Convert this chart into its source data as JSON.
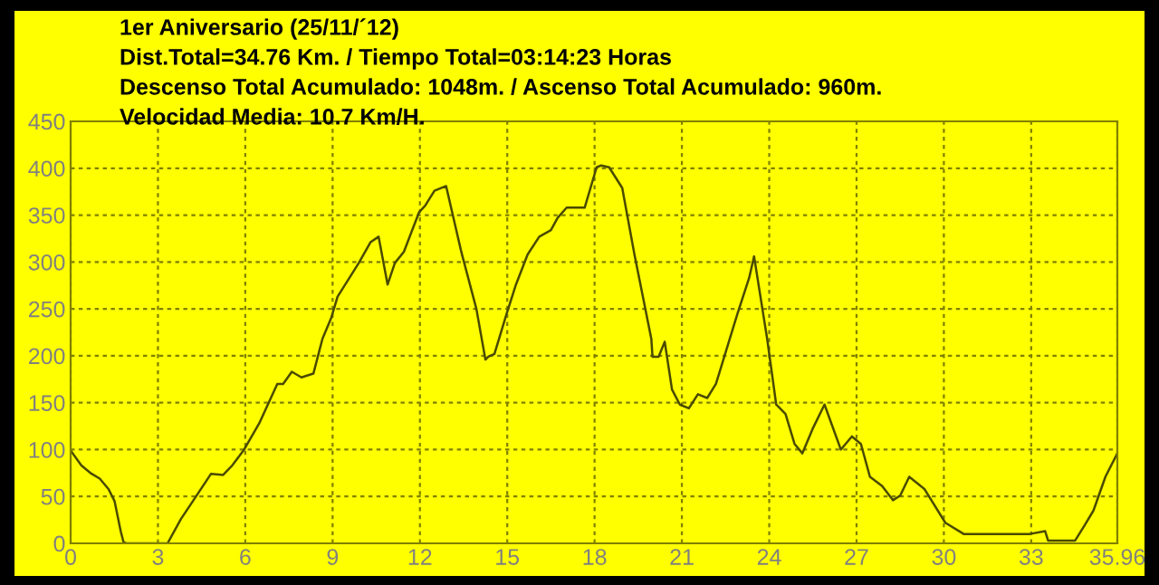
{
  "chart_data": {
    "type": "line",
    "title": "1er Aniversario (25/11/´12)",
    "annotations": [
      "Dist.Total=34.76 Km. / Tiempo Total=03:14:23 Horas",
      "Descenso Total Acumulado: 1048m. / Ascenso Total Acumulado: 960m.",
      "Velocidad Media: 10.7 Km/H."
    ],
    "series": [
      {
        "color": "#4a4a00",
        "x": [
          0,
          0.37,
          0.68,
          1.0,
          1.3,
          1.51,
          1.72,
          1.82,
          1.92,
          3.33,
          3.79,
          4.2,
          4.82,
          5.24,
          5.55,
          5.96,
          6.48,
          7.1,
          7.3,
          7.6,
          7.93,
          8.34,
          8.65,
          8.96,
          9.17,
          9.9,
          10.3,
          10.58,
          10.89,
          11.14,
          11.45,
          11.97,
          12.18,
          12.5,
          12.9,
          13.42,
          13.94,
          14.25,
          14.35,
          14.56,
          14.97,
          15.3,
          15.7,
          16.1,
          16.5,
          16.73,
          17.04,
          17.66,
          18.07,
          18.23,
          18.5,
          18.95,
          19.37,
          19.95,
          19.99,
          20.2,
          20.41,
          20.66,
          20.93,
          21.24,
          21.55,
          21.87,
          22.17,
          22.9,
          23.31,
          23.48,
          23.73,
          23.93,
          24.24,
          24.56,
          24.87,
          25.14,
          25.49,
          25.9,
          26.46,
          26.84,
          27.15,
          27.46,
          27.88,
          28.25,
          28.5,
          28.81,
          29.33,
          30.05,
          30.68,
          32.96,
          33.48,
          33.58,
          34.51,
          34.83,
          35.14,
          35.55,
          35.96
        ],
        "values": [
          99,
          83,
          75,
          69,
          58,
          45,
          13,
          1,
          0,
          0,
          26,
          45,
          74,
          73,
          83,
          100,
          128,
          170,
          170,
          183,
          177,
          181,
          218,
          241,
          263,
          299,
          321,
          327,
          276,
          299,
          311,
          353,
          360,
          376,
          381,
          311,
          250,
          196,
          199,
          202,
          244,
          276,
          308,
          327,
          334,
          347,
          358,
          358,
          401,
          403,
          401,
          379,
          308,
          218,
          199,
          199,
          215,
          164,
          148,
          144,
          159,
          155,
          170,
          244,
          283,
          306,
          257,
          218,
          148,
          138,
          106,
          96,
          122,
          148,
          100,
          114,
          106,
          71,
          61,
          46,
          51,
          71,
          58,
          22,
          10,
          10,
          13,
          3,
          3,
          19,
          35,
          71,
          96
        ]
      }
    ],
    "xlim": [
      0,
      35.96
    ],
    "xticks": [
      0,
      3,
      6,
      9,
      12,
      15,
      18,
      21,
      24,
      27,
      30,
      33,
      35.96
    ],
    "ylim": [
      0,
      450
    ],
    "yticks": [
      0,
      50,
      100,
      150,
      200,
      250,
      300,
      350,
      400,
      450
    ],
    "grid": true,
    "line_style": "solid",
    "marker": "none"
  }
}
